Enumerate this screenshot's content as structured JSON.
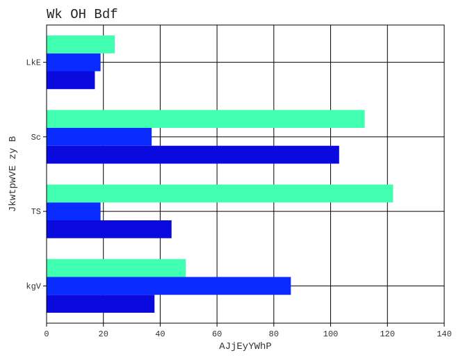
{
  "chart_data": {
    "type": "bar",
    "orientation": "horizontal",
    "title": "Wk OH Bdf",
    "xlabel": "AJjEyYWhP",
    "ylabel": "JkwtpwVE zy B",
    "categories": [
      "kgV",
      "TS",
      "Sc",
      "LkE"
    ],
    "series": [
      {
        "color": "#0a0adf",
        "values": [
          38,
          44,
          103,
          17
        ]
      },
      {
        "color": "#0a2bff",
        "values": [
          86,
          19,
          37,
          19
        ]
      },
      {
        "color": "#40ffb0",
        "values": [
          49,
          122,
          112,
          24
        ]
      }
    ],
    "xlim": [
      0,
      140
    ],
    "xticks": [
      0,
      20,
      40,
      60,
      80,
      100,
      120,
      140
    ],
    "grid": true,
    "legend": "none"
  }
}
